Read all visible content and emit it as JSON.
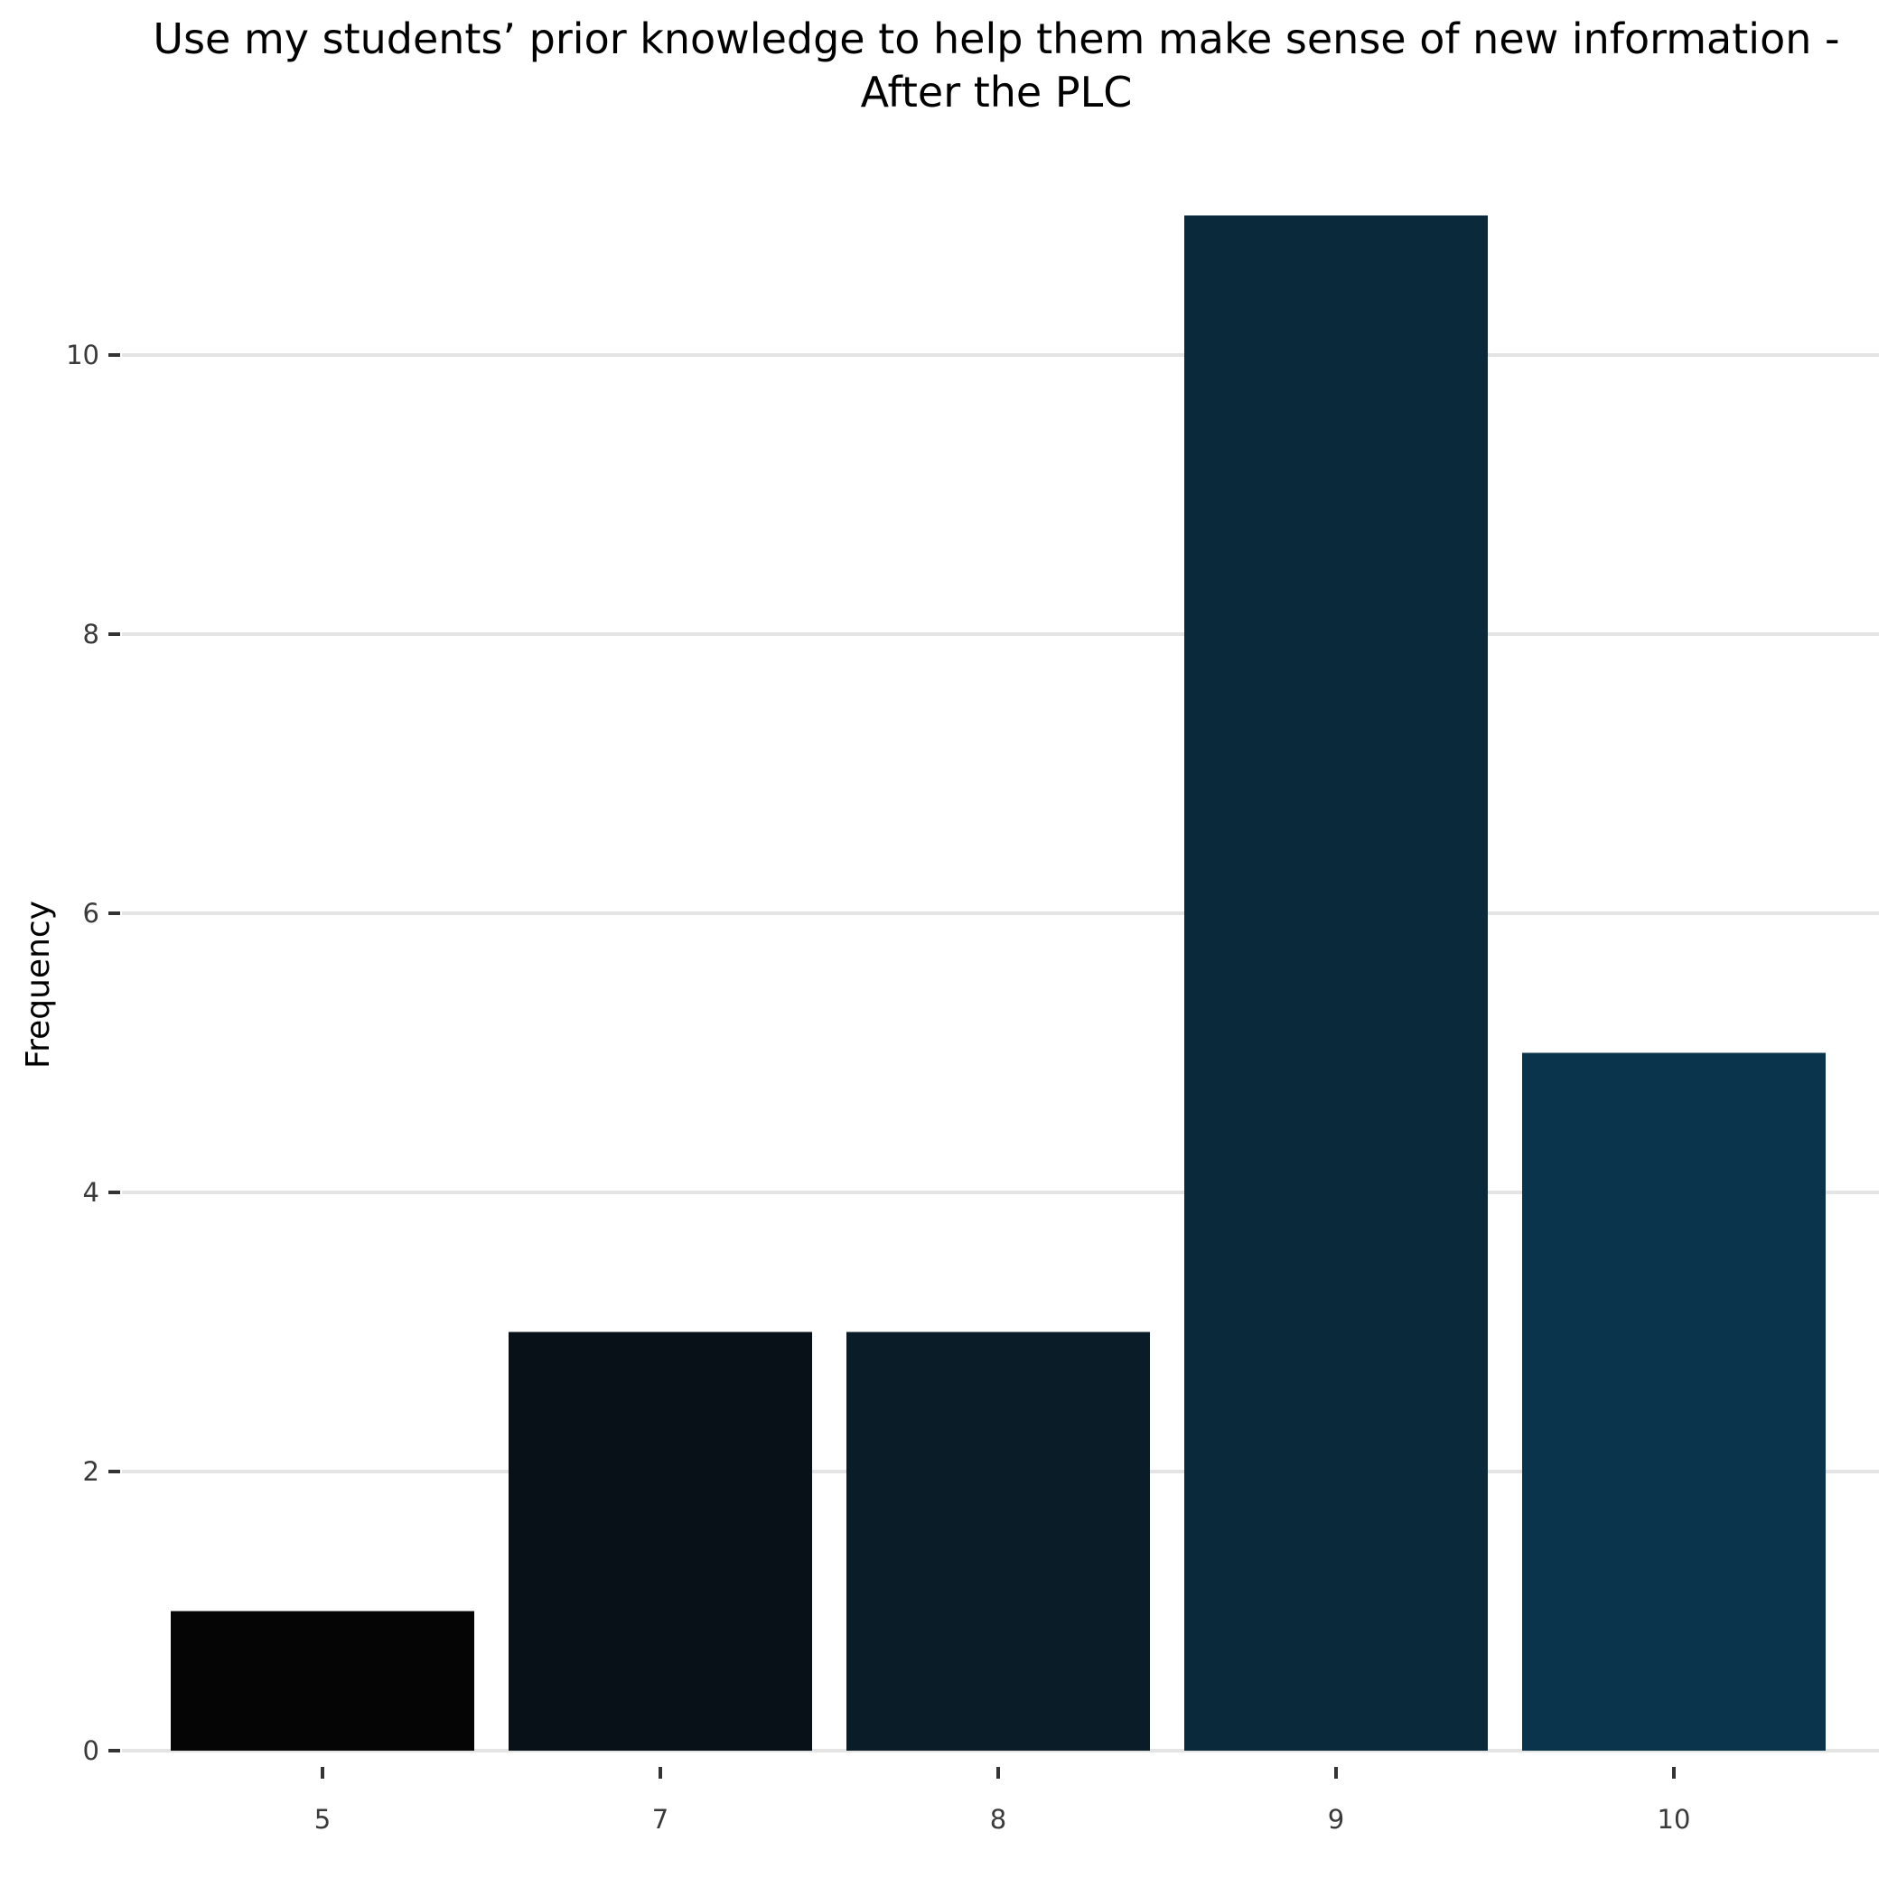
{
  "chart_data": {
    "type": "bar",
    "title_lines": [
      "Use my students’ prior knowledge to help them make sense of new information -",
      "After the PLC"
    ],
    "xlabel": "",
    "ylabel": "Frequency",
    "categories": [
      "5",
      "7",
      "8",
      "9",
      "10"
    ],
    "values": [
      1,
      3,
      3,
      11,
      5
    ],
    "colors": [
      "#050505",
      "#081117",
      "#0a1c27",
      "#0a2a3b",
      "#0a344b"
    ],
    "ylim": [
      0,
      12.1
    ],
    "yticks": [
      0,
      2,
      4,
      6,
      8,
      10
    ],
    "grid": true,
    "legend": "none"
  }
}
